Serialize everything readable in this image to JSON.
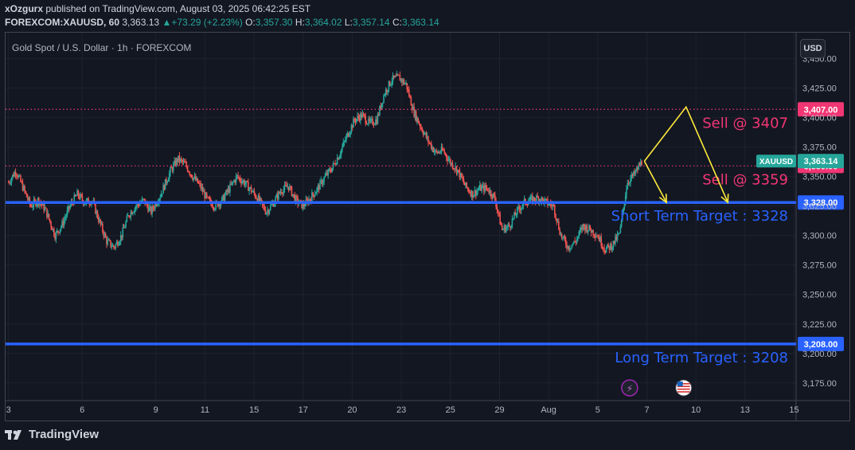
{
  "header": {
    "author": "xOzgurx",
    "published": "published on TradingView.com, August 03, 2025 06:42:25 EST",
    "symbol": "FOREXCOM:XAUUSD, 60",
    "last": "3,363.13",
    "change_arrow": "▲",
    "change": "+73.29 (+2.23%)",
    "o_label": "O:",
    "o_value": "3,357.30",
    "h_label": "H:",
    "h_value": "3,364.02",
    "l_label": "L:",
    "l_value": "3,357.14",
    "c_label": "C:",
    "c_value": "3,363.14"
  },
  "chart_title": "Gold Spot / U.S. Dollar · 1h · FOREXCOM",
  "currency_button": "USD",
  "footer": {
    "brand": "TradingView",
    "logo_icon": "tradingview-logo-icon"
  },
  "colors": {
    "background": "#131722",
    "up": "#26a69a",
    "down": "#ef5350",
    "blue_line": "#2962ff",
    "sell_line": "#f23674",
    "arrow": "#ffeb3b"
  },
  "chart_data": {
    "type": "candlestick",
    "title": "Gold Spot / U.S. Dollar · 1h · FOREXCOM",
    "ylim": [
      3160,
      3472
    ],
    "y_ticks": [
      3175,
      3200,
      3225,
      3250,
      3275,
      3300,
      3325,
      3350,
      3375,
      3400,
      3425,
      3450
    ],
    "y_tick_labels": [
      "3,175.00",
      "3,200.00",
      "3,225.00",
      "3,250.00",
      "3,275.00",
      "3,300.00",
      "3,325.00",
      "3,350.00",
      "3,375.00",
      "3,400.00",
      "3,425.00",
      "3,450.00"
    ],
    "x_ticks": [
      {
        "label": "3",
        "t": 0
      },
      {
        "label": "6",
        "t": 3
      },
      {
        "label": "9",
        "t": 6
      },
      {
        "label": "11",
        "t": 8
      },
      {
        "label": "15",
        "t": 10
      },
      {
        "label": "17",
        "t": 12
      },
      {
        "label": "20",
        "t": 14
      },
      {
        "label": "23",
        "t": 16
      },
      {
        "label": "25",
        "t": 18
      },
      {
        "label": "29",
        "t": 20
      },
      {
        "label": "Aug",
        "t": 22
      },
      {
        "label": "5",
        "t": 24
      },
      {
        "label": "7",
        "t": 26
      },
      {
        "label": "10",
        "t": 28
      },
      {
        "label": "13",
        "t": 30
      },
      {
        "label": "15",
        "t": 32
      }
    ],
    "price_path": [
      [
        0,
        3345
      ],
      [
        0.3,
        3355
      ],
      [
        0.6,
        3340
      ],
      [
        0.9,
        3325
      ],
      [
        1.2,
        3330
      ],
      [
        1.5,
        3322
      ],
      [
        1.9,
        3300
      ],
      [
        2.2,
        3310
      ],
      [
        2.5,
        3325
      ],
      [
        2.8,
        3335
      ],
      [
        3.1,
        3328
      ],
      [
        3.4,
        3330
      ],
      [
        3.7,
        3312
      ],
      [
        4.0,
        3295
      ],
      [
        4.3,
        3290
      ],
      [
        4.6,
        3300
      ],
      [
        4.9,
        3318
      ],
      [
        5.2,
        3325
      ],
      [
        5.5,
        3330
      ],
      [
        5.8,
        3320
      ],
      [
        6.2,
        3335
      ],
      [
        6.6,
        3355
      ],
      [
        6.9,
        3365
      ],
      [
        7.2,
        3360
      ],
      [
        7.5,
        3350
      ],
      [
        7.8,
        3342
      ],
      [
        8.1,
        3330
      ],
      [
        8.4,
        3325
      ],
      [
        8.7,
        3330
      ],
      [
        9.0,
        3340
      ],
      [
        9.3,
        3350
      ],
      [
        9.6,
        3345
      ],
      [
        9.9,
        3338
      ],
      [
        10.2,
        3330
      ],
      [
        10.5,
        3320
      ],
      [
        10.8,
        3328
      ],
      [
        11.1,
        3338
      ],
      [
        11.4,
        3342
      ],
      [
        11.7,
        3330
      ],
      [
        12.0,
        3325
      ],
      [
        12.3,
        3332
      ],
      [
        12.6,
        3340
      ],
      [
        12.9,
        3350
      ],
      [
        13.2,
        3358
      ],
      [
        13.5,
        3370
      ],
      [
        13.8,
        3385
      ],
      [
        14.1,
        3398
      ],
      [
        14.4,
        3402
      ],
      [
        14.7,
        3395
      ],
      [
        15.0,
        3398
      ],
      [
        15.3,
        3420
      ],
      [
        15.6,
        3432
      ],
      [
        15.9,
        3434
      ],
      [
        16.2,
        3428
      ],
      [
        16.5,
        3405
      ],
      [
        16.8,
        3392
      ],
      [
        17.1,
        3380
      ],
      [
        17.4,
        3370
      ],
      [
        17.7,
        3372
      ],
      [
        18.0,
        3362
      ],
      [
        18.3,
        3355
      ],
      [
        18.6,
        3342
      ],
      [
        18.9,
        3335
      ],
      [
        19.2,
        3340
      ],
      [
        19.5,
        3340
      ],
      [
        19.8,
        3332
      ],
      [
        20.1,
        3305
      ],
      [
        20.4,
        3308
      ],
      [
        20.7,
        3320
      ],
      [
        21.0,
        3328
      ],
      [
        21.3,
        3330
      ],
      [
        21.6,
        3332
      ],
      [
        21.9,
        3328
      ],
      [
        22.2,
        3325
      ],
      [
        22.5,
        3300
      ],
      [
        22.8,
        3290
      ],
      [
        23.1,
        3295
      ],
      [
        23.4,
        3308
      ],
      [
        23.7,
        3305
      ],
      [
        24.0,
        3300
      ],
      [
        24.3,
        3288
      ],
      [
        24.6,
        3292
      ],
      [
        24.9,
        3302
      ],
      [
        25.2,
        3345
      ],
      [
        25.5,
        3352
      ],
      [
        25.8,
        3363
      ]
    ],
    "lines": [
      {
        "kind": "horizontal",
        "color": "blue",
        "value": 3328,
        "badge": "3,328.00",
        "label": "Short Term Target : 3328"
      },
      {
        "kind": "horizontal",
        "color": "blue",
        "value": 3208,
        "badge": "3,208.00",
        "label": "Long Term Target : 3208"
      },
      {
        "kind": "dotted",
        "color": "red",
        "value": 3407,
        "badge": "3,407.00",
        "label": "Sell @ 3407"
      },
      {
        "kind": "dotted",
        "color": "red",
        "value": 3359,
        "badge": "3,359.00",
        "label": "Sell @ 3359"
      }
    ],
    "last_price": {
      "symbol": "XAUUSD",
      "value": 3363.14,
      "badge": "3,363.14"
    },
    "projections": [
      {
        "from": [
          25.9,
          3363
        ],
        "to": [
          26.8,
          3328
        ]
      },
      {
        "from": [
          25.9,
          3363
        ],
        "via": [
          27.6,
          3409
        ],
        "to": [
          29.3,
          3328
        ]
      }
    ],
    "event_icons": [
      {
        "t": 25.3,
        "name": "lightning-icon",
        "symbol": "⚡"
      },
      {
        "t": 27.5,
        "name": "us-flag-icon",
        "symbol": "US"
      }
    ]
  }
}
